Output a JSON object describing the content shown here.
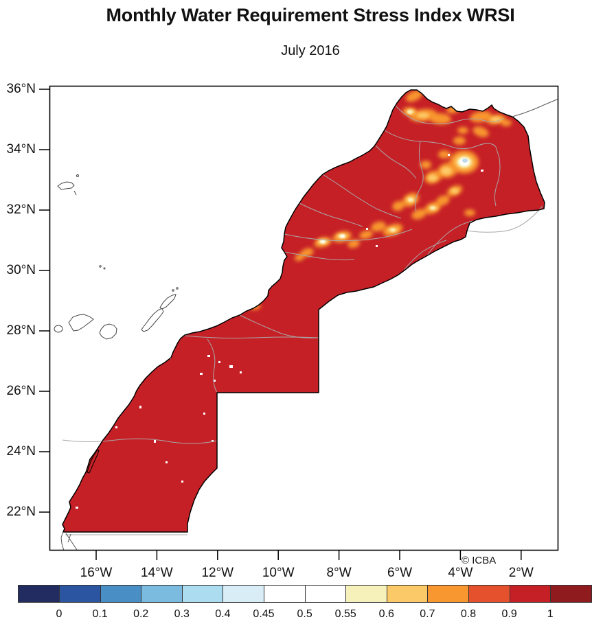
{
  "figure": {
    "title": "Monthly Water Requirement Stress Index WRSI",
    "subtitle": "July 2016",
    "attribution": "© ICBA"
  },
  "chart_data": {
    "type": "heatmap",
    "title": "Monthly Water Requirement Stress Index WRSI",
    "subtitle": "July 2016",
    "variable": "WRSI",
    "axes": {
      "lat": {
        "labels": [
          "36°N",
          "34°N",
          "32°N",
          "30°N",
          "28°N",
          "26°N",
          "24°N",
          "22°N"
        ],
        "values": [
          36,
          34,
          32,
          30,
          28,
          26,
          24,
          22
        ],
        "range": [
          20.7,
          36.1
        ]
      },
      "lon": {
        "labels": [
          "16°W",
          "14°W",
          "12°W",
          "10°W",
          "8°W",
          "6°W",
          "4°W",
          "2°W"
        ],
        "values": [
          -16,
          -14,
          -12,
          -10,
          -8,
          -6,
          -4,
          -2
        ],
        "range": [
          -17.55,
          -0.78
        ]
      },
      "grid": false
    },
    "colorbar": {
      "position": "bottom",
      "tick_labels": [
        "0",
        "0.1",
        "0.2",
        "0.3",
        "0.4",
        "0.45",
        "0.5",
        "0.55",
        "0.6",
        "0.7",
        "0.8",
        "0.9",
        "1"
      ],
      "tick_values": [
        0,
        0.1,
        0.2,
        0.3,
        0.4,
        0.45,
        0.5,
        0.55,
        0.6,
        0.7,
        0.8,
        0.9,
        1
      ],
      "segment_colors": [
        "#222c60",
        "#2b55a0",
        "#4a8ec6",
        "#7cbbe0",
        "#abdcf0",
        "#d9edf6",
        "#ffffff",
        "#ffffff",
        "#f6f0ba",
        "#fcc968",
        "#f8962f",
        "#e4512c",
        "#c62027",
        "#8f1b1e"
      ]
    },
    "map_observations": [
      {
        "region": "Most of Morocco and Western Sahara",
        "wrsi_class": "0.9–1"
      },
      {
        "region": "Rif / Tangier peninsula (north)",
        "wrsi_class": "0.6–0.9"
      },
      {
        "region": "Middle Atlas spot near Fès",
        "wrsi_class": "0.3–0.55"
      },
      {
        "region": "High Atlas mountain chain (patch band)",
        "wrsi_class": "0.5–0.9"
      },
      {
        "region": "Scattered small pixels in the south",
        "wrsi_class": "0.45–0.55"
      }
    ]
  },
  "palette": {
    "land_red": "#c62027",
    "orange": "#f8962f",
    "golden": "#fcc968",
    "cream": "#f6f0ba",
    "white": "#ffffff",
    "pale_blue": "#bcdaec",
    "coast": "#000000",
    "admin_line": "#a8a8a8",
    "island_outline": "#444444",
    "frame": "#000000"
  }
}
